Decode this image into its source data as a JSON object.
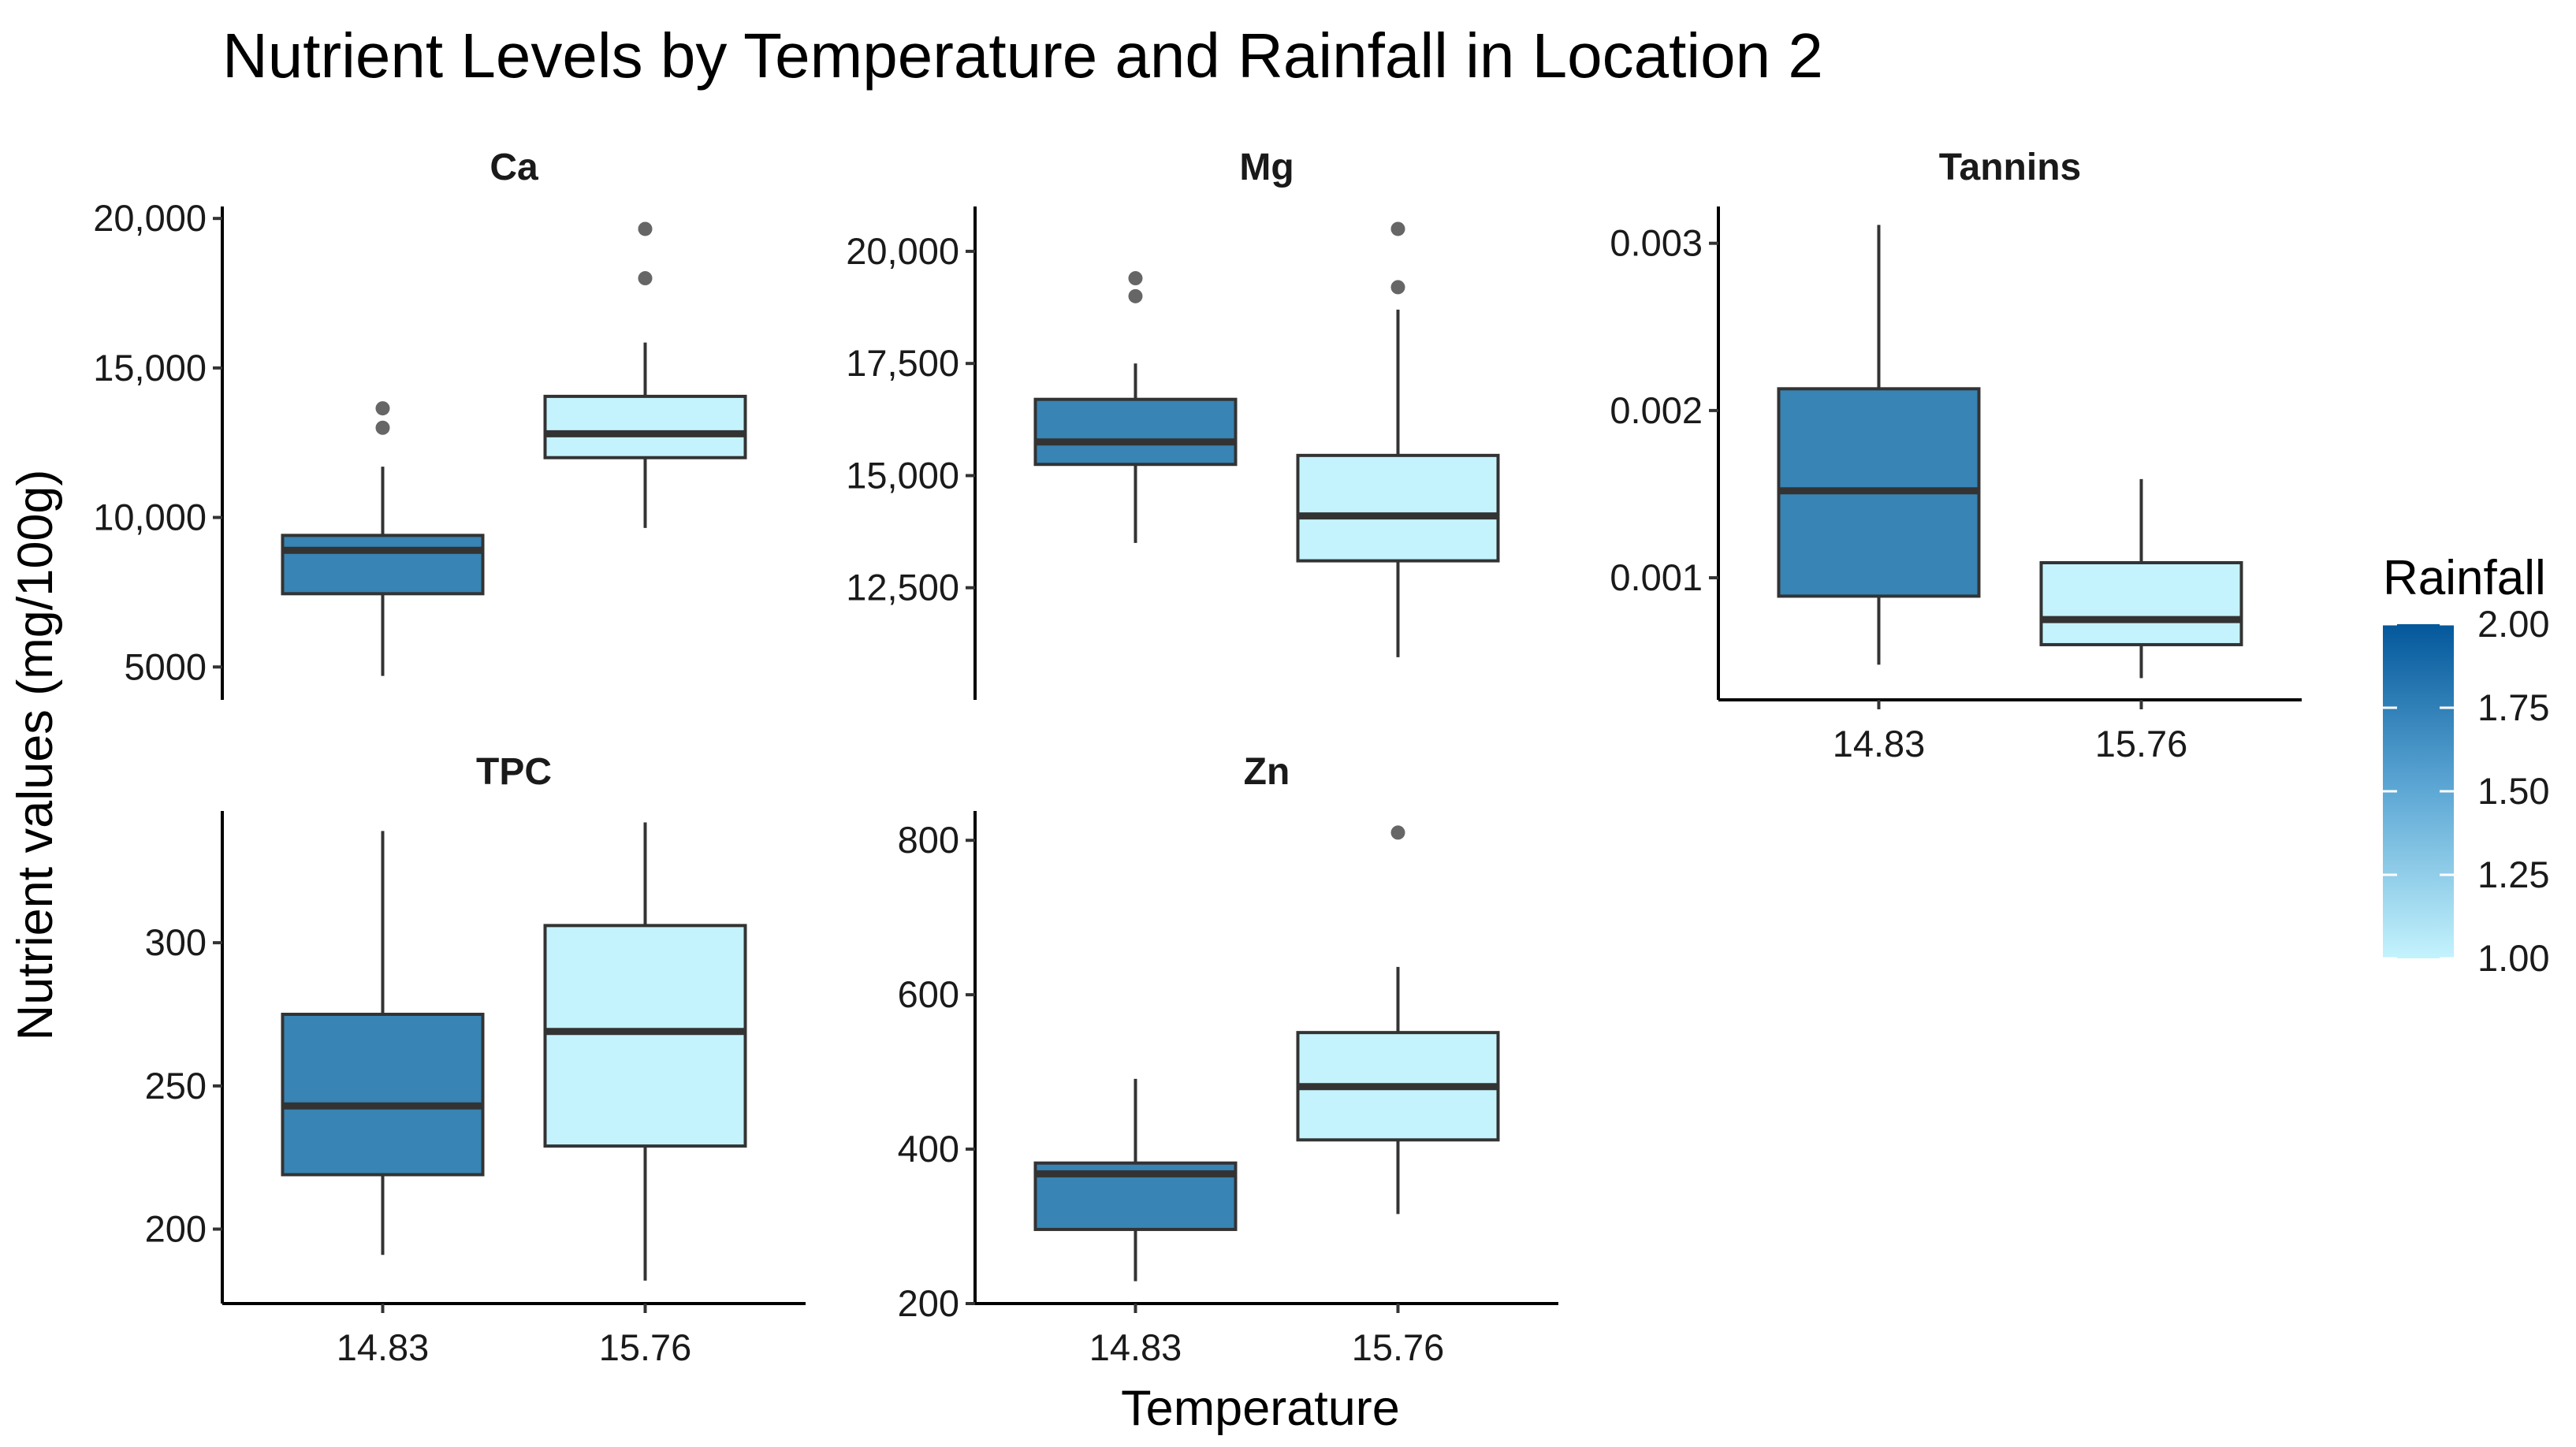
{
  "chart_data": {
    "type": "boxplot",
    "title": "Nutrient Levels by Temperature and Rainfall in Location 2",
    "xlabel": "Temperature",
    "ylabel": "Nutrient values (mg/100g)",
    "categories": [
      "14.83",
      "15.76"
    ],
    "legend": {
      "title": "Rainfall",
      "placement": "right",
      "range": [
        1.0,
        2.0
      ],
      "ticks": [
        "2.00",
        "1.75",
        "1.50",
        "1.25",
        "1.00"
      ],
      "color_low": "#c4f3fd",
      "color_high": "#03589b"
    },
    "facets": [
      {
        "name": "Ca",
        "ylim": [
          3900,
          20400
        ],
        "ticks": [
          5000,
          10000,
          15000,
          20000
        ],
        "tick_labels": [
          "5000",
          "10,000",
          "15,000",
          "20,000"
        ],
        "boxes": [
          {
            "x": "14.83",
            "rainfall": 2.0,
            "fill": "#3884b4",
            "min": 4700,
            "q1": 7450,
            "median": 8900,
            "q3": 9400,
            "max": 11700,
            "outliers": [
              13000,
              13650
            ]
          },
          {
            "x": "15.76",
            "rainfall": 1.0,
            "fill": "#c4f3fd",
            "min": 9650,
            "q1": 12000,
            "median": 12800,
            "q3": 14050,
            "max": 15850,
            "outliers": [
              18000,
              19650
            ]
          }
        ]
      },
      {
        "name": "Mg",
        "ylim": [
          10000,
          21000
        ],
        "ticks": [
          12500,
          15000,
          17500,
          20000
        ],
        "tick_labels": [
          "12,500",
          "15,000",
          "17,500",
          "20,000"
        ],
        "boxes": [
          {
            "x": "14.83",
            "rainfall": 2.0,
            "fill": "#3884b4",
            "min": 13500,
            "q1": 15250,
            "median": 15750,
            "q3": 16700,
            "max": 17500,
            "outliers": [
              19000,
              19400
            ]
          },
          {
            "x": "15.76",
            "rainfall": 1.0,
            "fill": "#c4f3fd",
            "min": 10950,
            "q1": 13100,
            "median": 14100,
            "q3": 15450,
            "max": 18700,
            "outliers": [
              19200,
              20500
            ]
          }
        ]
      },
      {
        "name": "Tannins",
        "ylim": [
          0.00027,
          0.00322
        ],
        "ticks": [
          0.001,
          0.002,
          0.003
        ],
        "tick_labels": [
          "0.001",
          "0.002",
          "0.003"
        ],
        "boxes": [
          {
            "x": "14.83",
            "rainfall": 2.0,
            "fill": "#3884b4",
            "min": 0.00048,
            "q1": 0.00089,
            "median": 0.00152,
            "q3": 0.00213,
            "max": 0.00311,
            "outliers": []
          },
          {
            "x": "15.76",
            "rainfall": 1.0,
            "fill": "#c4f3fd",
            "min": 0.0004,
            "q1": 0.0006,
            "median": 0.00075,
            "q3": 0.00109,
            "max": 0.00159,
            "outliers": []
          }
        ]
      },
      {
        "name": "TPC",
        "ylim": [
          174,
          346
        ],
        "ticks": [
          200,
          250,
          300
        ],
        "tick_labels": [
          "200",
          "250",
          "300"
        ],
        "boxes": [
          {
            "x": "14.83",
            "rainfall": 2.0,
            "fill": "#3884b4",
            "min": 191,
            "q1": 219,
            "median": 243,
            "q3": 275,
            "max": 339,
            "outliers": []
          },
          {
            "x": "15.76",
            "rainfall": 1.0,
            "fill": "#c4f3fd",
            "min": 182,
            "q1": 229,
            "median": 269,
            "q3": 306,
            "max": 342,
            "outliers": []
          }
        ]
      },
      {
        "name": "Zn",
        "ylim": [
          200,
          838
        ],
        "ticks": [
          200,
          400,
          600,
          800
        ],
        "tick_labels": [
          "200",
          "400",
          "600",
          "800"
        ],
        "boxes": [
          {
            "x": "14.83",
            "rainfall": 2.0,
            "fill": "#3884b4",
            "min": 229,
            "q1": 296,
            "median": 368,
            "q3": 382,
            "max": 491,
            "outliers": []
          },
          {
            "x": "15.76",
            "rainfall": 1.0,
            "fill": "#c4f3fd",
            "min": 316,
            "q1": 412,
            "median": 481,
            "q3": 551,
            "max": 636,
            "outliers": [
              810
            ]
          }
        ]
      }
    ]
  }
}
